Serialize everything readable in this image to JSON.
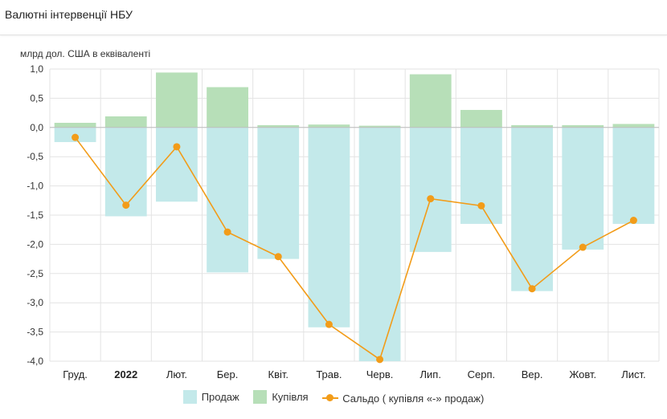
{
  "header": {
    "title": "Валютні інтервенції НБУ"
  },
  "chart_data": {
    "type": "bar",
    "title": "Валютні інтервенції НБУ",
    "ylabel": "млрд дол. США в еквіваленті",
    "xlabel": "",
    "ylim": [
      -4.0,
      1.0
    ],
    "yticks": [
      1.0,
      0.5,
      0.0,
      -0.5,
      -1.0,
      -1.5,
      -2.0,
      -2.5,
      -3.0,
      -3.5,
      -4.0
    ],
    "ytick_labels": [
      "1,0",
      "0,5",
      "0,0",
      "-0,5",
      "-1,0",
      "-1,5",
      "-2,0",
      "-2,5",
      "-3,0",
      "-3,5",
      "-4,0"
    ],
    "grid": true,
    "categories": [
      "Груд.",
      "2022",
      "Лют.",
      "Бер.",
      "Квіт.",
      "Трав.",
      "Черв.",
      "Лип.",
      "Серп.",
      "Вер.",
      "Жовт.",
      "Лист."
    ],
    "bold_categories": [
      "2022"
    ],
    "series": [
      {
        "name": "Продаж",
        "kind": "bar",
        "color": "#c3e9ea",
        "values": [
          -0.25,
          -1.52,
          -1.27,
          -2.48,
          -2.25,
          -3.42,
          -4.0,
          -2.13,
          -1.65,
          -2.8,
          -2.09,
          -1.65
        ]
      },
      {
        "name": "Купівля",
        "kind": "bar",
        "color": "#b7dfb8",
        "values": [
          0.08,
          0.19,
          0.94,
          0.69,
          0.04,
          0.05,
          0.03,
          0.91,
          0.3,
          0.04,
          0.04,
          0.06
        ]
      },
      {
        "name": "Сальдо ( купівля «-» продаж)",
        "kind": "line",
        "color": "#f29c19",
        "values": [
          -0.17,
          -1.33,
          -0.33,
          -1.79,
          -2.21,
          -3.37,
          -3.97,
          -1.22,
          -1.34,
          -2.76,
          -2.05,
          -1.59
        ]
      }
    ],
    "legend_position": "bottom"
  }
}
